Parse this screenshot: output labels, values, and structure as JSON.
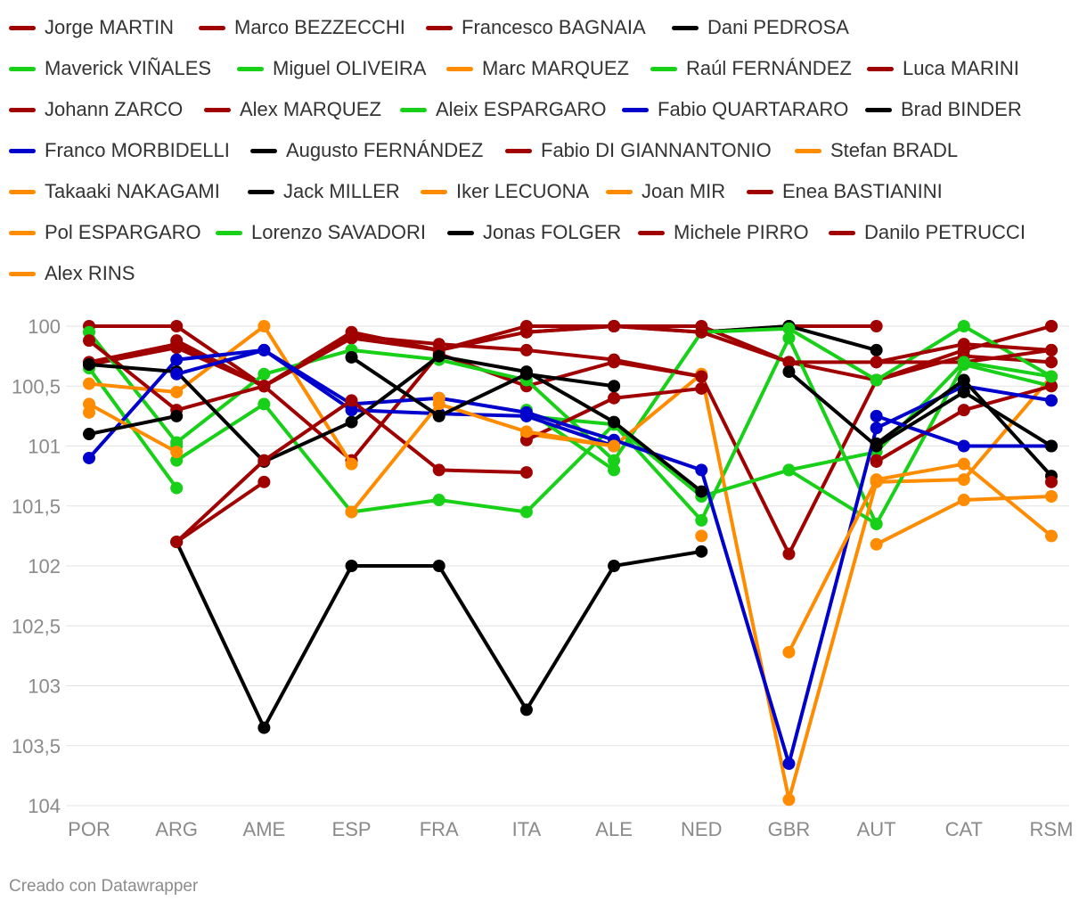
{
  "chart_data": {
    "type": "line",
    "x": [
      "POR",
      "ARG",
      "AME",
      "ESP",
      "FRA",
      "ITA",
      "ALE",
      "NED",
      "GBR",
      "AUT",
      "CAT",
      "RSM"
    ],
    "ylim": [
      100,
      104
    ],
    "y_reversed": true,
    "y_ticks": [
      100,
      100.5,
      101,
      101.5,
      102,
      102.5,
      103,
      103.5,
      104
    ],
    "y_tick_labels": [
      "100",
      "100,5",
      "101",
      "101,5",
      "102",
      "102,5",
      "103",
      "103,5",
      "104"
    ],
    "grid": true,
    "legend_position": "top",
    "series": [
      {
        "name": "Jorge MARTIN",
        "color": "#a00000",
        "values": [
          100.3,
          100.15,
          100.5,
          100.1,
          100.2,
          100.05,
          100,
          100.05,
          100,
          100,
          null,
          100
        ]
      },
      {
        "name": "Marco BEZZECCHI",
        "color": "#a00000",
        "values": [
          100.32,
          100.18,
          100.5,
          101.12,
          100.23,
          100.5,
          100.3,
          100.42,
          101.9,
          100.45,
          100.25,
          100.3
        ]
      },
      {
        "name": "Francesco BAGNAIA",
        "color": "#a00000",
        "values": [
          100,
          100,
          100.5,
          100.05,
          100.2,
          100,
          100,
          100,
          100.3,
          100.45,
          100.2,
          100
        ]
      },
      {
        "name": "Dani PEDROSA",
        "color": "#000000",
        "values": [
          null,
          null,
          null,
          null,
          null,
          null,
          null,
          100.05,
          100,
          100.2,
          null,
          null
        ]
      },
      {
        "name": "Maverick VIÑALES",
        "color": "#18d018",
        "values": [
          100.05,
          100.97,
          100.4,
          100.2,
          100.28,
          100.45,
          101.12,
          100.05,
          100.02,
          100.45,
          100,
          100.42
        ]
      },
      {
        "name": "Miguel OLIVEIRA",
        "color": "#18d018",
        "values": [
          100.35,
          101.35,
          null,
          101.55,
          101.45,
          101.55,
          100.82,
          101.62,
          100.1,
          101.65,
          null,
          null
        ]
      },
      {
        "name": "Marc MARQUEZ",
        "color": "#ff8c00",
        "values": [
          100.48,
          100.55,
          100,
          101.15,
          null,
          100.9,
          101,
          100.4,
          103.95,
          101.3,
          101.28,
          100.42
        ]
      },
      {
        "name": "Raúl FERNÁNDEZ",
        "color": "#18d018",
        "values": [
          null,
          101.12,
          100.65,
          101.55,
          null,
          100.75,
          100.82,
          101.42,
          101.2,
          101.65,
          100.32,
          100.5
        ]
      },
      {
        "name": "Luca MARINI",
        "color": "#a00000",
        "values": [
          null,
          100.12,
          100.5,
          100.1,
          null,
          100.05,
          100,
          100.05,
          100.3,
          100.3,
          100.3,
          100.2
        ]
      },
      {
        "name": "Johann ZARCO",
        "color": "#a00000",
        "values": [
          100.12,
          100.7,
          100.5,
          100.08,
          100.15,
          100.2,
          100.28,
          100.42,
          null,
          100.3,
          100.15,
          100.2
        ]
      },
      {
        "name": "Alex MARQUEZ",
        "color": "#a00000",
        "values": [
          null,
          101.8,
          101.3,
          null,
          null,
          100.95,
          100.6,
          100.52,
          null,
          101.13,
          100.7,
          100.5
        ]
      },
      {
        "name": "Aleix ESPARGARO",
        "color": "#18d018",
        "values": [
          null,
          101,
          null,
          100.2,
          null,
          100.7,
          101.2,
          null,
          101.2,
          101.05,
          100.3,
          100.42
        ]
      },
      {
        "name": "Fabio QUARTARARO",
        "color": "#0000cc",
        "values": [
          101.1,
          100.28,
          100.2,
          100.65,
          100.6,
          100.72,
          100.95,
          101.2,
          103.65,
          100.85,
          100.5,
          100.62
        ]
      },
      {
        "name": "Brad BINDER",
        "color": "#000000",
        "values": [
          100.32,
          100.38,
          101.13,
          100.8,
          100.25,
          100.38,
          100.8,
          101.38,
          null,
          100.98,
          100.45,
          101.25
        ]
      },
      {
        "name": "Franco MORBIDELLI",
        "color": "#0000cc",
        "values": [
          null,
          100.4,
          100.2,
          100.7,
          100.73,
          100.75,
          101,
          null,
          null,
          100.75,
          101,
          101
        ]
      },
      {
        "name": "Augusto FERNÁNDEZ",
        "color": "#000000",
        "values": [
          null,
          101.8,
          103.35,
          102,
          102,
          103.2,
          102,
          101.88,
          null,
          null,
          null,
          null
        ]
      },
      {
        "name": "Fabio DI GIANNANTONIO",
        "color": "#a00000",
        "values": [
          null,
          101.8,
          101.12,
          100.62,
          101.2,
          101.22,
          null,
          null,
          null,
          101.12,
          null,
          101.3
        ]
      },
      {
        "name": "Stefan BRADL",
        "color": "#ff8c00",
        "values": [
          100.72,
          null,
          null,
          null,
          100.6,
          null,
          null,
          101.75,
          null,
          101.82,
          101.45,
          101.42
        ]
      },
      {
        "name": "Takaaki NAKAGAMI",
        "color": "#ff8c00",
        "values": [
          100.65,
          101.05,
          null,
          101.55,
          100.65,
          100.88,
          101,
          null,
          102.72,
          101.28,
          101.15,
          101.75
        ]
      },
      {
        "name": "Jack MILLER",
        "color": "#000000",
        "values": [
          100.9,
          100.75,
          null,
          100.26,
          100.75,
          100.4,
          100.5,
          null,
          100.38,
          101,
          100.55,
          101
        ]
      },
      {
        "name": "Iker LECUONA",
        "color": "#ff8c00",
        "values": [
          null,
          null,
          null,
          null,
          null,
          null,
          null,
          null,
          null,
          null,
          null,
          null
        ]
      },
      {
        "name": "Joan MIR",
        "color": "#ff8c00",
        "values": [
          null,
          null,
          null,
          null,
          null,
          null,
          null,
          null,
          null,
          null,
          null,
          null
        ]
      },
      {
        "name": "Enea BASTIANINI",
        "color": "#a00000",
        "values": [
          null,
          null,
          null,
          null,
          null,
          null,
          null,
          null,
          null,
          null,
          null,
          null
        ]
      },
      {
        "name": "Pol ESPARGARO",
        "color": "#ff8c00",
        "values": [
          null,
          null,
          null,
          null,
          null,
          null,
          null,
          null,
          null,
          null,
          null,
          null
        ]
      },
      {
        "name": "Lorenzo SAVADORI",
        "color": "#18d018",
        "values": [
          null,
          null,
          null,
          null,
          null,
          null,
          null,
          null,
          null,
          null,
          null,
          null
        ]
      },
      {
        "name": "Jonas FOLGER",
        "color": "#000000",
        "values": [
          null,
          null,
          null,
          null,
          null,
          null,
          null,
          null,
          null,
          null,
          null,
          null
        ]
      },
      {
        "name": "Michele PIRRO",
        "color": "#a00000",
        "values": [
          null,
          null,
          null,
          null,
          null,
          null,
          null,
          null,
          null,
          null,
          null,
          null
        ]
      },
      {
        "name": "Danilo PETRUCCI",
        "color": "#a00000",
        "values": [
          null,
          null,
          null,
          null,
          null,
          null,
          null,
          null,
          null,
          null,
          null,
          null
        ]
      },
      {
        "name": "Alex RINS",
        "color": "#ff8c00",
        "values": [
          null,
          null,
          null,
          null,
          null,
          null,
          null,
          null,
          null,
          null,
          null,
          null
        ]
      }
    ]
  },
  "footer": "Creado con Datawrapper"
}
